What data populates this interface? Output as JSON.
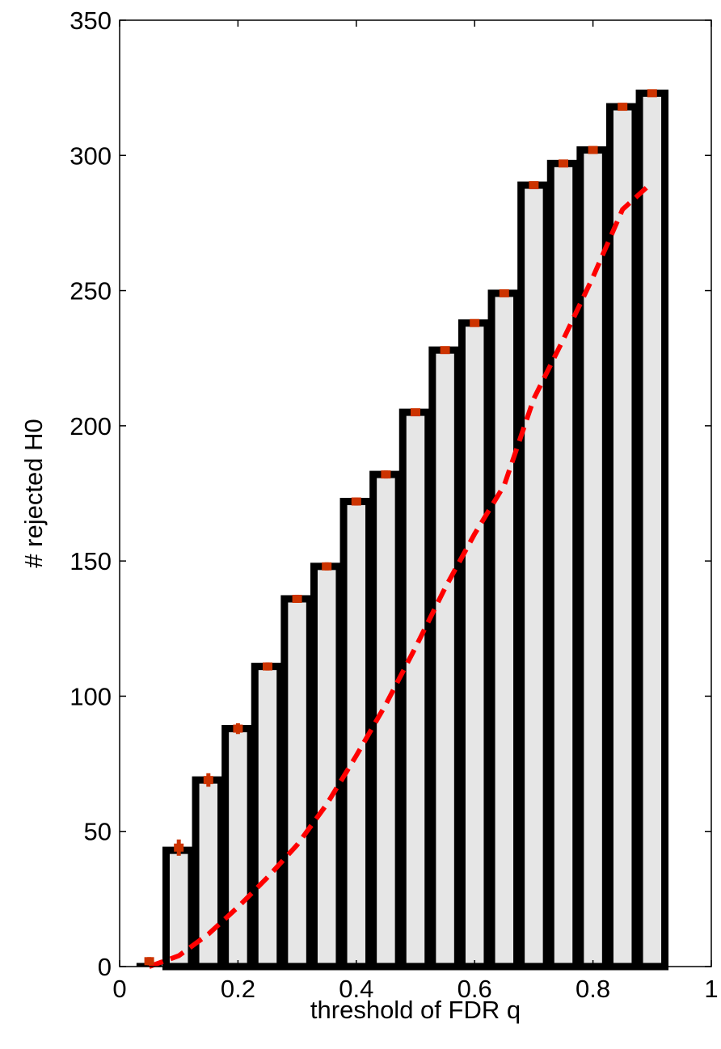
{
  "chart_data": {
    "type": "bar",
    "title": "",
    "xlabel": "threshold of FDR q",
    "ylabel": "# rejected H0",
    "xlim": [
      0,
      1
    ],
    "ylim": [
      0,
      350
    ],
    "x_ticks": [
      0,
      0.2,
      0.4,
      0.6,
      0.8,
      1
    ],
    "x_tick_labels": [
      "0",
      "0.2",
      "0.4",
      "0.6",
      "0.8",
      "1"
    ],
    "y_ticks": [
      0,
      50,
      100,
      150,
      200,
      250,
      300,
      350
    ],
    "y_tick_labels": [
      "0",
      "50",
      "100",
      "150",
      "200",
      "250",
      "300",
      "350"
    ],
    "grid": false,
    "x": [
      0.05,
      0.1,
      0.15,
      0.2,
      0.25,
      0.3,
      0.35,
      0.4,
      0.45,
      0.5,
      0.55,
      0.6,
      0.65,
      0.7,
      0.75,
      0.8,
      0.85,
      0.9
    ],
    "series": [
      {
        "type": "bar",
        "values": [
          0,
          43,
          69,
          88,
          111,
          136,
          148,
          172,
          182,
          205,
          228,
          238,
          249,
          289,
          297,
          302,
          318,
          323
        ],
        "fill": "#e6e6e6",
        "edge": "#000000"
      },
      {
        "type": "errorbar-points",
        "values": [
          2,
          44,
          69,
          88,
          111,
          136,
          148,
          172,
          182,
          205,
          228,
          238,
          249,
          289,
          297,
          302,
          318,
          323
        ],
        "errors": [
          1.5,
          3,
          2.5,
          2,
          1.5,
          1.5,
          1.5,
          1.5,
          1.5,
          1,
          1,
          1,
          1,
          1,
          1,
          1,
          1,
          1
        ],
        "color": "#cc3300"
      },
      {
        "type": "line",
        "style": "dashed",
        "color": "#ff0000",
        "x": [
          0.05,
          0.1,
          0.15,
          0.2,
          0.25,
          0.3,
          0.35,
          0.4,
          0.45,
          0.5,
          0.55,
          0.6,
          0.65,
          0.7,
          0.75,
          0.8,
          0.85,
          0.9
        ],
        "values": [
          0,
          4,
          12,
          22,
          33,
          45,
          60,
          78,
          97,
          118,
          140,
          160,
          178,
          210,
          232,
          255,
          280,
          290
        ]
      }
    ]
  }
}
